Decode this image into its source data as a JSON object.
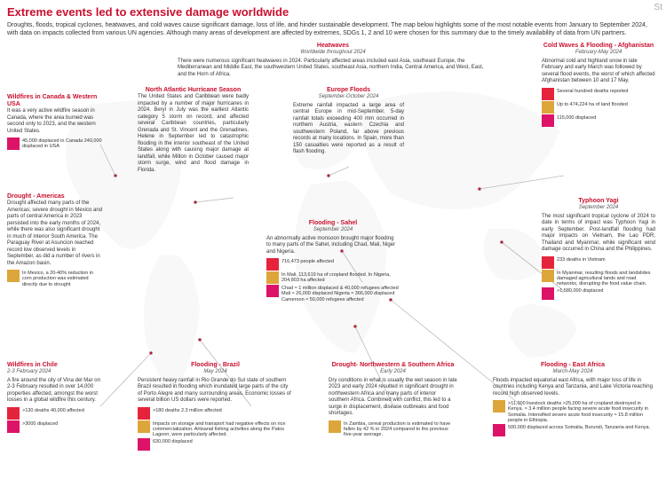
{
  "phantom": "St",
  "title": "Extreme events led to extensive damage worldwide",
  "subtitle": "Droughts, floods, tropical cyclones, heatwaves, and cold waves cause significant damage, loss of life, and hinder sustainable development. The map below highlights some of the most notable events from January to September 2024, with data on impacts collected from various UN agencies. Although many areas of development are affected by extremes, SDGs 1, 2 and 10 were chosen for this summary due to the timely availability of data from UN partners.",
  "colors": {
    "accent": "#c8102e",
    "sdg1": "#e5243b",
    "sdg2": "#dda63a",
    "sdg10": "#dd1367",
    "map": "#e0e0e0"
  },
  "callouts": {
    "heatwaves": {
      "title": "Heatwaves",
      "sub": "Worldwide throughout 2024",
      "body": "There were numerous significant heatwaves in 2024. Particularly affected areas included east Asia, southeast Europe, the Mediterranean and Middle East, the southwestern United States, southeast Asia, northern India, Central America, and West, East, and the Horn of Africa."
    },
    "wildfires_na": {
      "title": "Wildfires in Canada & Western USA",
      "body": "It was a very active wildfire season in Canada, where the area burned was second only to 2023, and the western United States.",
      "stats": [
        {
          "sdg": "10",
          "text": "45,000 displaced in Canada 240,000 displaced in USA"
        }
      ]
    },
    "hurricane": {
      "title": "North Atlantic Hurricane Season",
      "body": "The United States and Caribbean were badly impacted by a number of major hurricanes in 2024. Beryl in July was the earliest Atlantic category 5 storm on record, and affected several Caribbean countries, particularly Grenada and St. Vincent and the Grenadines. Helene in September led to catastrophic flooding in the interior southeast of the United States along with causing major damage at landfall, while Milton in October caused major storm surge, wind and flood damage in Florida."
    },
    "europe_floods": {
      "title": "Europe Floods",
      "sub": "September-October 2024",
      "body": "Extreme rainfall impacted a large area of central Europe in mid-September. 5-day rainfall totals exceeding 400 mm occurred in northern Austria, eastern Czechia and southwestern Poland, far above previous records at many locations. In Spain, more than 150 casualties were reported as a result of flash flooding."
    },
    "afghanistan": {
      "title": "Cold Waves & Flooding - Afghanistan",
      "sub": "February-May 2024",
      "body": "Abnormal cold and highland snow in late February and early March was followed by several flood events, the worst of which affected Afghanistan between 10 and 17 May.",
      "stats": [
        {
          "sdg": "1",
          "text": "Several hundred deaths reported"
        },
        {
          "sdg": "2",
          "text": "Up to 474,224 ha of land flooded"
        },
        {
          "sdg": "10",
          "text": "115,000 displaced"
        }
      ]
    },
    "drought_americas": {
      "title": "Drought - Americas",
      "body": "Drought affected many parts of the Americas; severe drought in Mexico and parts of central America in 2023 persisted into the early months of 2024, while there was also significant drought in much of interior South America. The Paraguay River at Asuncion reached record low observed levels in September, as did a number of rivers in the Amazon basin.",
      "stats": [
        {
          "sdg": "2",
          "text": "In Mexico, a 20-40% reduction in corn production was estimated directly due to drought"
        }
      ]
    },
    "sahel": {
      "title": "Flooding - Sahel",
      "sub": "September 2024",
      "body": "An abnormally active monsoon brought major flooding to many parts of the Sahel, including Chad, Mali, Niger and Nigeria.",
      "stats": [
        {
          "sdg": "1",
          "text": "716,473 people affected"
        },
        {
          "sdg": "2",
          "text": "In Mali, 113,619 ha of cropland flooded. In Nigeria, 204,803 ha affected"
        },
        {
          "sdg": "10",
          "text": "Chad ≈ 1 million displaced & 40,000 refugees affected\nMali ≈ 26,000 displaced\nNigeria ≈ 366,000 displaced\nCameroon ≈ 50,000 refugees affected"
        }
      ]
    },
    "yagi": {
      "title": "Typhoon Yagi",
      "sub": "September 2024",
      "body": "The most significant tropical cyclone of 2024 to date in terms of impact was Typhoon Yagi in early September. Post-landfall flooding had major impacts on Vietnam, the Lao PDR, Thailand and Myanmar, while significant wind damage occurred in China and the Philippines.",
      "stats": [
        {
          "sdg": "1",
          "text": "233 deaths in Vietnam"
        },
        {
          "sdg": "2",
          "text": "In Myanmar, resulting floods and landslides damaged agricultural lands and road networks, disrupting the food value chain."
        },
        {
          "sdg": "10",
          "text": ">1,580,000 displaced"
        }
      ]
    },
    "chile": {
      "title": "Wildfires in Chile",
      "sub": "2-3 February 2024",
      "body": "A fire around the city of Vina del Mar on 2-3 February resulted in over 14,000 properties affected, amongst the worst losses in a global wildfire this century.",
      "stats": [
        {
          "sdg": "1",
          "text": ">130 deaths\n40,000 affected"
        },
        {
          "sdg": "10",
          "text": ">3000 displaced"
        }
      ]
    },
    "brazil": {
      "title": "Flooding - Brazil",
      "sub": "May 2024",
      "body": "Persistent heavy rainfall in Rio Grande do Sul state of southern Brazil resulted in flooding which inundated large parts of the city of Porto Alegre and many surrounding areas. Economic losses of several billion US dollars were reported.",
      "stats": [
        {
          "sdg": "1",
          "text": ">180 deaths\n2.3 million affected"
        },
        {
          "sdg": "2",
          "text": "Impacts on storage and transport had negative effects on rice commercialization. Artisanal fishing activities along the Patos Lagoon, were particularly affected."
        },
        {
          "sdg": "10",
          "text": "630,000 displaced"
        }
      ]
    },
    "drought_africa": {
      "title": "Drought- Northwestern & Southern Africa",
      "sub": "Early 2024",
      "body": "Dry conditions in what is usually the wet season in late 2023 and early 2024 resulted in significant drought in northwestern Africa and many parts of interior southern Africa. Combined with conflict, this led to a surge in displacement, disease outbreaks and food shortages.",
      "stats": [
        {
          "sdg": "2",
          "text": "In Zambia, cereal production is estimated to have fallen by 42 % in 2024 compared to the previous five-year average."
        }
      ]
    },
    "east_africa": {
      "title": "Flooding - East Africa",
      "sub": "March-May 2024",
      "body": "Floods impacted equatorial east Africa, with major loss of life in countries including Kenya and Tanzania, and Lake Victoria reaching record high observed levels.",
      "stats": [
        {
          "sdg": "2",
          "text": ">11,000 livestock deaths >25,000 ha of cropland destroyed in Kenya. ≈ 3.4 million people facing severe acute food insecurity in Somalia. Intensified severe acute food insecurity ≈ 15.8 million people in Ethiopia."
        },
        {
          "sdg": "10",
          "text": "500,000 displaced across Somalia, Burundi, Tanzania and Kenya."
        }
      ]
    }
  }
}
